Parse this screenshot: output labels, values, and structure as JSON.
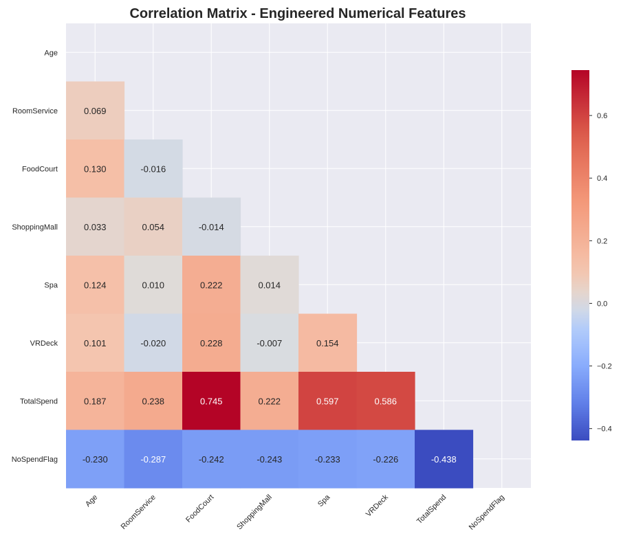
{
  "chart_data": {
    "type": "heatmap",
    "title": "Correlation Matrix - Engineered Numerical Features",
    "labels": [
      "Age",
      "RoomService",
      "FoodCourt",
      "ShoppingMall",
      "Spa",
      "VRDeck",
      "TotalSpend",
      "NoSpendFlag"
    ],
    "mask": "upper-triangle-including-diagonal",
    "rows": [
      [
        null,
        null,
        null,
        null,
        null,
        null,
        null,
        null
      ],
      [
        0.069,
        null,
        null,
        null,
        null,
        null,
        null,
        null
      ],
      [
        0.13,
        -0.016,
        null,
        null,
        null,
        null,
        null,
        null
      ],
      [
        0.033,
        0.054,
        -0.014,
        null,
        null,
        null,
        null,
        null
      ],
      [
        0.124,
        0.01,
        0.222,
        0.014,
        null,
        null,
        null,
        null
      ],
      [
        0.101,
        -0.02,
        0.228,
        -0.007,
        0.154,
        null,
        null,
        null
      ],
      [
        0.187,
        0.238,
        0.745,
        0.222,
        0.597,
        0.586,
        null,
        null
      ],
      [
        -0.23,
        -0.287,
        -0.242,
        -0.243,
        -0.233,
        -0.226,
        -0.438,
        null
      ]
    ],
    "value_labels": [
      [],
      [
        "0.069"
      ],
      [
        "0.130",
        "-0.016"
      ],
      [
        "0.033",
        "0.054",
        "-0.014"
      ],
      [
        "0.124",
        "0.010",
        "0.222",
        "0.014"
      ],
      [
        "0.101",
        "-0.020",
        "0.228",
        "-0.007",
        "0.154"
      ],
      [
        "0.187",
        "0.238",
        "0.745",
        "0.222",
        "0.597",
        "0.586"
      ],
      [
        "-0.230",
        "-0.287",
        "-0.242",
        "-0.243",
        "-0.233",
        "-0.226",
        "-0.438"
      ]
    ],
    "colormap": "coolwarm",
    "color_range": [
      -0.438,
      0.745
    ],
    "colorbar_ticks": [
      -0.4,
      -0.2,
      0.0,
      0.2,
      0.4,
      0.6
    ],
    "colorbar_tick_labels": [
      "−0.4",
      "−0.2",
      "0.0",
      "0.2",
      "0.4",
      "0.6"
    ],
    "grid": true,
    "background_color": "#eaeaf2"
  }
}
